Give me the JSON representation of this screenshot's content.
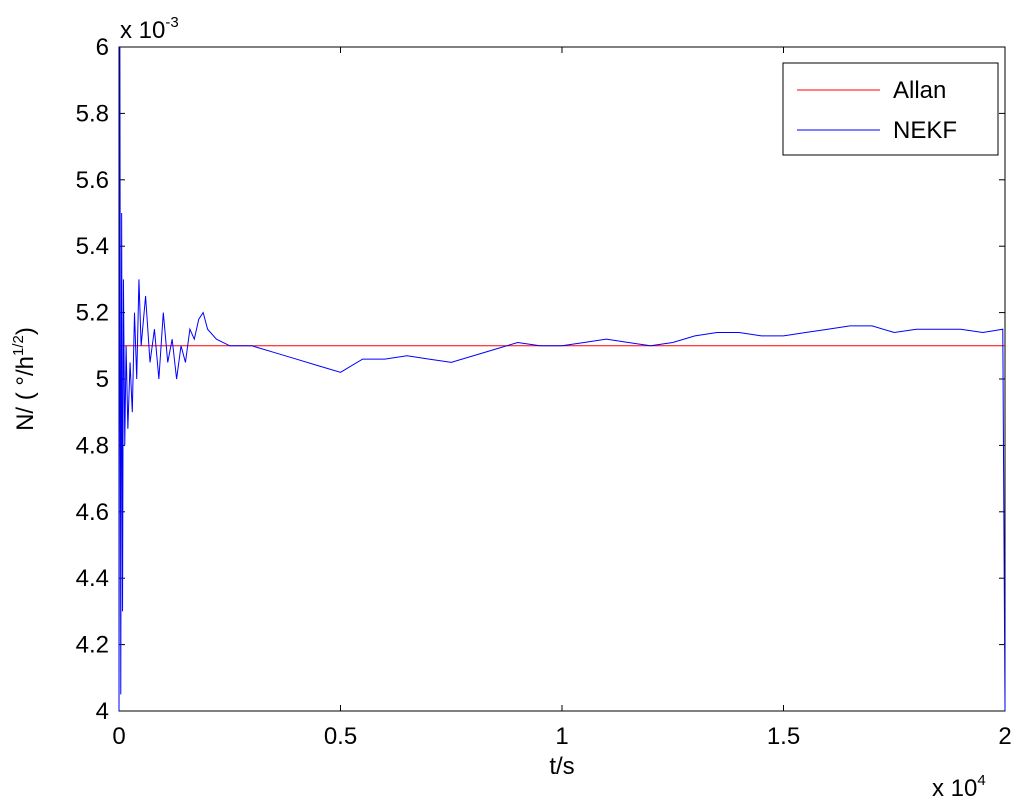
{
  "chart_data": {
    "type": "line",
    "ylabel": [
      "N/ ( °/h",
      "1/2",
      ")"
    ],
    "xlabel": "t/s",
    "y_multiplier": [
      "x 10",
      "-3"
    ],
    "x_multiplier": [
      "x 10",
      "4"
    ],
    "xlim": [
      0,
      2
    ],
    "ylim": [
      4,
      6
    ],
    "xticks": [
      0,
      0.5,
      1,
      1.5,
      2
    ],
    "yticks": [
      4,
      4.2,
      4.4,
      4.6,
      4.8,
      5,
      5.2,
      5.4,
      5.6,
      5.8,
      6
    ],
    "grid": false,
    "legend": "upper right",
    "series": [
      {
        "name": "Allan",
        "color": "#ff0000",
        "x": [
          0,
          2
        ],
        "values": [
          5.1,
          5.1
        ]
      },
      {
        "name": "NEKF",
        "color": "#0000ff",
        "x": [
          0,
          0.002,
          0.004,
          0.006,
          0.008,
          0.01,
          0.013,
          0.016,
          0.02,
          0.025,
          0.03,
          0.035,
          0.04,
          0.045,
          0.05,
          0.06,
          0.07,
          0.08,
          0.09,
          0.1,
          0.11,
          0.12,
          0.13,
          0.14,
          0.15,
          0.16,
          0.17,
          0.18,
          0.19,
          0.2,
          0.22,
          0.25,
          0.3,
          0.35,
          0.4,
          0.45,
          0.5,
          0.55,
          0.6,
          0.65,
          0.7,
          0.75,
          0.8,
          0.85,
          0.9,
          0.95,
          1,
          1.05,
          1.1,
          1.15,
          1.2,
          1.25,
          1.3,
          1.35,
          1.4,
          1.45,
          1.5,
          1.55,
          1.6,
          1.65,
          1.7,
          1.75,
          1.8,
          1.85,
          1.9,
          1.95,
          1.995,
          2
        ],
        "values": [
          4.0,
          6.0,
          4.05,
          5.5,
          4.3,
          5.3,
          4.8,
          5.1,
          4.85,
          5.05,
          4.9,
          5.2,
          5.0,
          5.3,
          5.1,
          5.25,
          5.05,
          5.15,
          5.0,
          5.2,
          5.05,
          5.12,
          5.0,
          5.1,
          5.05,
          5.15,
          5.12,
          5.18,
          5.2,
          5.15,
          5.12,
          5.1,
          5.1,
          5.08,
          5.06,
          5.04,
          5.02,
          5.06,
          5.06,
          5.07,
          5.06,
          5.05,
          5.07,
          5.09,
          5.11,
          5.1,
          5.1,
          5.11,
          5.12,
          5.11,
          5.1,
          5.11,
          5.13,
          5.14,
          5.14,
          5.13,
          5.13,
          5.14,
          5.15,
          5.16,
          5.16,
          5.14,
          5.15,
          5.15,
          5.15,
          5.14,
          5.15,
          4.0
        ]
      }
    ]
  }
}
